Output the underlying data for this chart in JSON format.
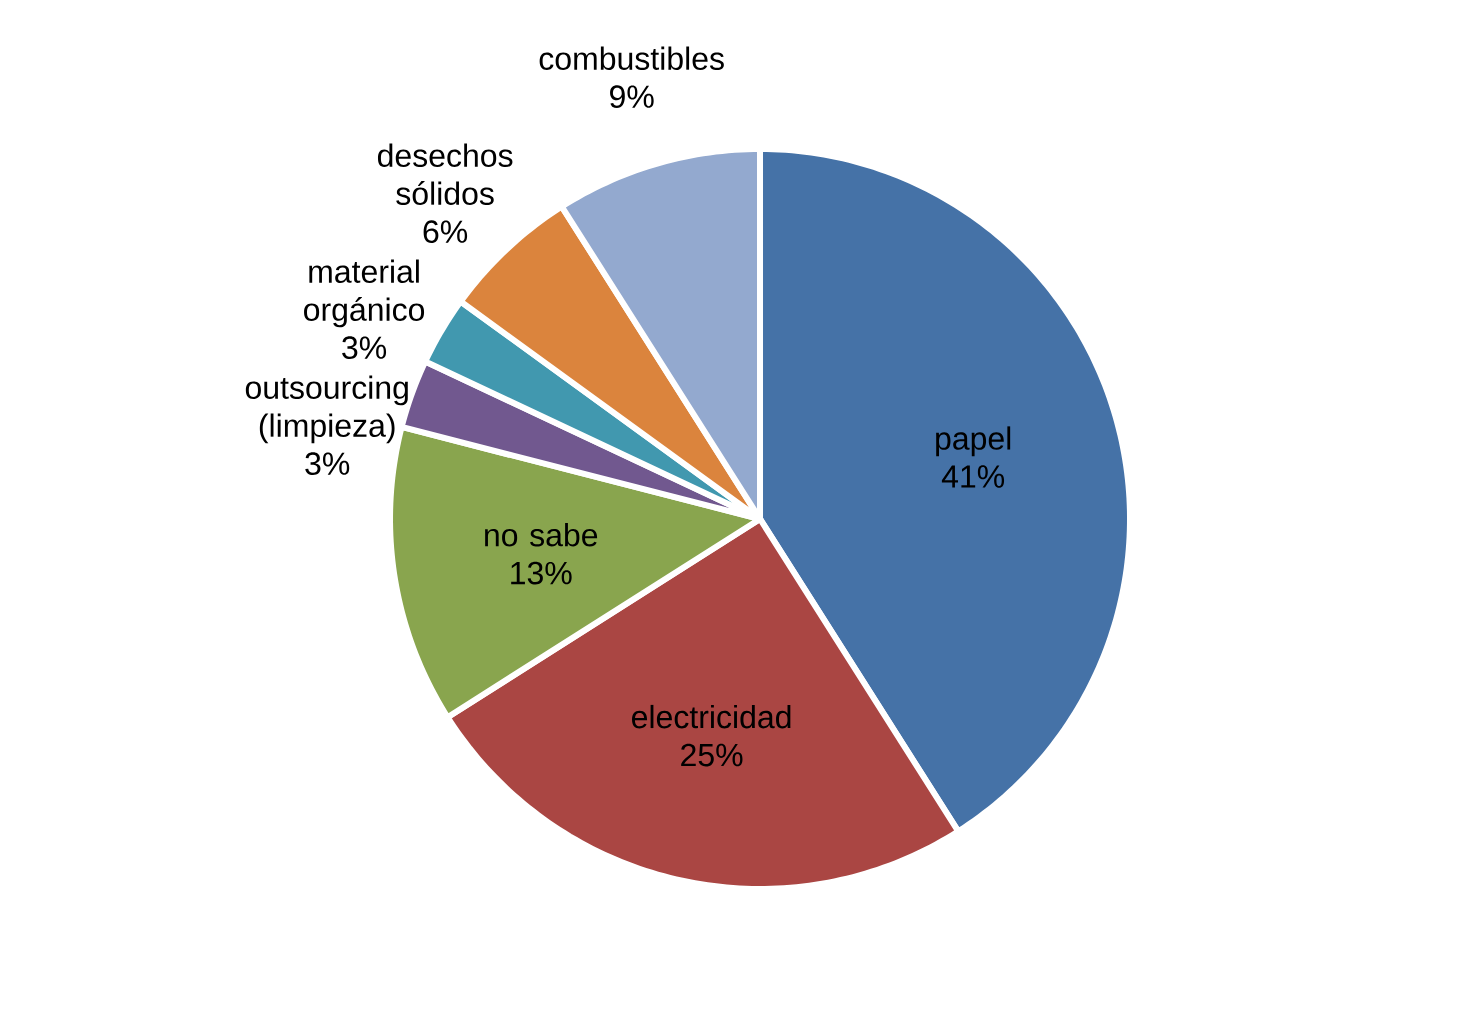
{
  "chart_data": {
    "type": "pie",
    "categories": [
      "papel",
      "electricidad",
      "no sabe",
      "outsourcing (limpieza)",
      "material orgánico",
      "desechos sólidos",
      "combustibles"
    ],
    "values": [
      41,
      25,
      13,
      3,
      3,
      6,
      9
    ],
    "value_labels": [
      "41%",
      "25%",
      "13%",
      "3%",
      "3%",
      "6%",
      "9%"
    ],
    "colors": [
      "#4572a7",
      "#aa4643",
      "#89a54e",
      "#71588f",
      "#4198af",
      "#db843d",
      "#93a9cf"
    ]
  }
}
